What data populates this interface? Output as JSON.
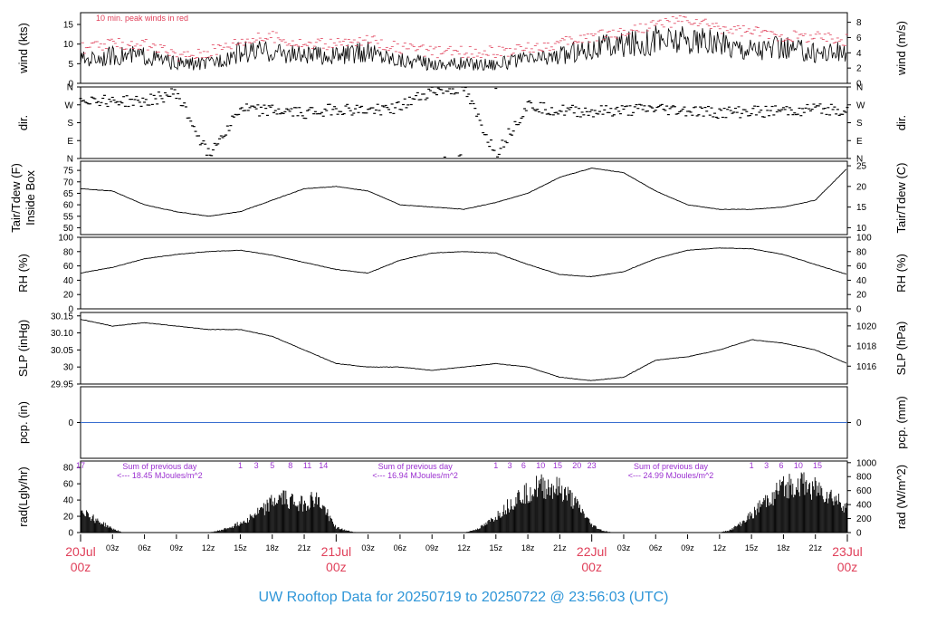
{
  "title": "UW Rooftop Data for 20250719  to  20250722 @ 23:56:03  (UTC)",
  "colors": {
    "day_label": "#e0405a",
    "peak": "#e0405a",
    "sum_text": "#9b30d0",
    "title": "#2f96d8",
    "precip_line": "#3a6fd0",
    "line": "#000000"
  },
  "chart_data": [
    {
      "id": "wind",
      "type": "line",
      "note": "10 min. peak winds in red",
      "ylabel_left": "wind (kts)",
      "ylabel_right": "wind (m/s)",
      "ylim": [
        0,
        18
      ],
      "yticks_left": [
        0,
        5,
        10,
        15
      ],
      "yticks_right": [
        0,
        2,
        4,
        6,
        8
      ],
      "right_per_left": 0.5144,
      "x": [
        0,
        3,
        6,
        9,
        12,
        15,
        18,
        21,
        24,
        27,
        30,
        33,
        36,
        39,
        42,
        45,
        48,
        51,
        54,
        57,
        60,
        63,
        66,
        69,
        72
      ],
      "series": [
        {
          "role": "mean",
          "values": [
            6,
            7,
            7,
            5,
            5,
            8,
            8,
            7,
            7,
            8,
            6,
            5,
            5,
            5,
            6,
            7,
            9,
            10,
            11,
            11,
            10,
            9,
            9,
            8,
            8
          ]
        },
        {
          "role": "peak",
          "values": [
            9,
            10,
            10,
            7,
            8,
            11,
            12,
            10,
            10,
            11,
            9,
            8,
            8,
            8,
            9,
            10,
            12,
            13,
            15,
            16,
            14,
            13,
            12,
            12,
            11
          ]
        }
      ]
    },
    {
      "id": "direction",
      "type": "scatter",
      "ylabel_left": "dir.",
      "ylabel_right": "dir.",
      "ylim": [
        0,
        360
      ],
      "ytick_labels": [
        "N",
        "E",
        "S",
        "W",
        "N"
      ],
      "x": [
        0,
        3,
        6,
        9,
        12,
        15,
        18,
        21,
        24,
        27,
        30,
        33,
        36,
        39,
        42,
        45,
        48,
        51,
        54,
        57,
        60,
        63,
        66,
        69,
        72
      ],
      "values": [
        300,
        290,
        285,
        330,
        20,
        250,
        240,
        230,
        250,
        240,
        260,
        340,
        350,
        20,
        270,
        240,
        235,
        240,
        250,
        240,
        230,
        235,
        240,
        250,
        245
      ]
    },
    {
      "id": "temperature",
      "type": "line",
      "ylabel_left": "Tair/Tdew (F)\nInside Box",
      "ylabel_right": "Tair/Tdew (C)",
      "ylim": [
        47,
        79
      ],
      "yticks_left": [
        50,
        55,
        60,
        65,
        70,
        75
      ],
      "yticks_right": [
        10,
        15,
        20,
        25
      ],
      "x": [
        0,
        3,
        6,
        9,
        12,
        15,
        18,
        21,
        24,
        27,
        30,
        33,
        36,
        39,
        42,
        45,
        48,
        51,
        54,
        57,
        60,
        63,
        66,
        69,
        72
      ],
      "values": [
        67,
        66,
        60,
        57,
        55,
        57,
        62,
        67,
        68,
        66,
        60,
        59,
        58,
        61,
        65,
        72,
        76,
        74,
        66,
        60,
        58,
        58,
        59,
        62,
        76
      ]
    },
    {
      "id": "humidity",
      "type": "line",
      "ylabel_left": "RH (%)",
      "ylabel_right": "RH (%)",
      "ylim": [
        0,
        100
      ],
      "yticks_left": [
        0,
        20,
        40,
        60,
        80,
        100
      ],
      "yticks_right": [
        0,
        20,
        40,
        60,
        80,
        100
      ],
      "x": [
        0,
        3,
        6,
        9,
        12,
        15,
        18,
        21,
        24,
        27,
        30,
        33,
        36,
        39,
        42,
        45,
        48,
        51,
        54,
        57,
        60,
        63,
        66,
        69,
        72
      ],
      "values": [
        50,
        58,
        70,
        76,
        80,
        82,
        75,
        65,
        55,
        50,
        68,
        78,
        80,
        78,
        62,
        48,
        45,
        52,
        70,
        82,
        85,
        84,
        76,
        62,
        48
      ]
    },
    {
      "id": "pressure",
      "type": "line",
      "ylabel_left": "SLP (inHg)",
      "ylabel_right": "SLP (hPa)",
      "ylim": [
        29.95,
        30.16
      ],
      "yticks_left": [
        29.95,
        30.0,
        30.05,
        30.1,
        30.15
      ],
      "yticks_right": [
        1016,
        1018,
        1020
      ],
      "x": [
        0,
        3,
        6,
        9,
        12,
        15,
        18,
        21,
        24,
        27,
        30,
        33,
        36,
        39,
        42,
        45,
        48,
        51,
        54,
        57,
        60,
        63,
        66,
        69,
        72
      ],
      "values": [
        30.14,
        30.12,
        30.13,
        30.12,
        30.11,
        30.11,
        30.09,
        30.05,
        30.01,
        30.0,
        30.0,
        29.99,
        30.0,
        30.01,
        30.0,
        29.97,
        29.96,
        29.97,
        30.02,
        30.03,
        30.05,
        30.08,
        30.07,
        30.05,
        30.01
      ]
    },
    {
      "id": "precipitation",
      "type": "line",
      "ylabel_left": "pcp. (in)",
      "ylabel_right": "pcp. (mm)",
      "ylim": [
        -1,
        1
      ],
      "yticks_left": [
        0
      ],
      "yticks_right": [
        0
      ],
      "x": [
        0,
        72
      ],
      "values": [
        0,
        0
      ]
    },
    {
      "id": "radiation",
      "type": "area",
      "ylabel_left": "rad(Lgly/hr)",
      "ylabel_right": "rad (W/m^2)",
      "ylim": [
        0,
        88
      ],
      "yticks_left": [
        0,
        20,
        40,
        60,
        80
      ],
      "yticks_right": [
        0,
        200,
        400,
        600,
        800,
        1000
      ],
      "right_per_left": 11.63,
      "x": [
        0,
        1,
        2,
        3,
        4,
        12,
        13,
        14,
        15,
        16,
        17,
        18,
        19,
        20,
        21,
        22,
        23,
        24,
        25,
        26,
        36,
        37,
        38,
        39,
        40,
        41,
        42,
        43,
        44,
        45,
        46,
        47,
        48,
        49,
        50,
        60,
        61,
        62,
        63,
        64,
        65,
        66,
        67,
        68,
        69,
        70,
        71,
        72
      ],
      "values": [
        40,
        25,
        15,
        6,
        0,
        0,
        3,
        8,
        15,
        25,
        35,
        48,
        55,
        50,
        45,
        55,
        35,
        8,
        3,
        0,
        0,
        4,
        12,
        25,
        40,
        55,
        65,
        72,
        72,
        68,
        55,
        35,
        12,
        3,
        0,
        0,
        4,
        14,
        28,
        45,
        60,
        72,
        78,
        75,
        70,
        62,
        52,
        40
      ],
      "hour_marks": [
        {
          "x": 0,
          "label": "17"
        },
        {
          "x": 15,
          "label": "1"
        },
        {
          "x": 16.5,
          "label": "3"
        },
        {
          "x": 18,
          "label": "5"
        },
        {
          "x": 19.7,
          "label": "8"
        },
        {
          "x": 21.3,
          "label": "11"
        },
        {
          "x": 22.8,
          "label": "14"
        },
        {
          "x": 39,
          "label": "1"
        },
        {
          "x": 40.3,
          "label": "3"
        },
        {
          "x": 41.6,
          "label": "6"
        },
        {
          "x": 43.2,
          "label": "10"
        },
        {
          "x": 44.8,
          "label": "15"
        },
        {
          "x": 46.6,
          "label": "20"
        },
        {
          "x": 48,
          "label": "23"
        },
        {
          "x": 63,
          "label": "1"
        },
        {
          "x": 64.4,
          "label": "3"
        },
        {
          "x": 65.8,
          "label": "6"
        },
        {
          "x": 67.4,
          "label": "10"
        },
        {
          "x": 69.2,
          "label": "15"
        }
      ],
      "daily_sums": [
        {
          "x": 7,
          "line1": "Sum of previous day",
          "line2": "<--- 18.45 MJoules/m^2"
        },
        {
          "x": 31,
          "line1": "Sum of previous day",
          "line2": "<--- 16.94 MJoules/m^2"
        },
        {
          "x": 55,
          "line1": "Sum of previous day",
          "line2": "<--- 24.99 MJoules/m^2"
        }
      ]
    }
  ],
  "time_axis": {
    "hours": 72,
    "hour_ticks": [
      {
        "x": 3,
        "label": "03z"
      },
      {
        "x": 6,
        "label": "06z"
      },
      {
        "x": 9,
        "label": "09z"
      },
      {
        "x": 12,
        "label": "12z"
      },
      {
        "x": 15,
        "label": "15z"
      },
      {
        "x": 18,
        "label": "18z"
      },
      {
        "x": 21,
        "label": "21z"
      },
      {
        "x": 27,
        "label": "03z"
      },
      {
        "x": 30,
        "label": "06z"
      },
      {
        "x": 33,
        "label": "09z"
      },
      {
        "x": 36,
        "label": "12z"
      },
      {
        "x": 39,
        "label": "15z"
      },
      {
        "x": 42,
        "label": "18z"
      },
      {
        "x": 45,
        "label": "21z"
      },
      {
        "x": 51,
        "label": "03z"
      },
      {
        "x": 54,
        "label": "06z"
      },
      {
        "x": 57,
        "label": "09z"
      },
      {
        "x": 60,
        "label": "12z"
      },
      {
        "x": 63,
        "label": "15z"
      },
      {
        "x": 66,
        "label": "18z"
      },
      {
        "x": 69,
        "label": "21z"
      }
    ],
    "day_ticks": [
      {
        "x": 0,
        "date": "20Jul",
        "hour": "00z"
      },
      {
        "x": 24,
        "date": "21Jul",
        "hour": "00z"
      },
      {
        "x": 48,
        "date": "22Jul",
        "hour": "00z"
      },
      {
        "x": 72,
        "date": "23Jul",
        "hour": "00z"
      }
    ]
  }
}
